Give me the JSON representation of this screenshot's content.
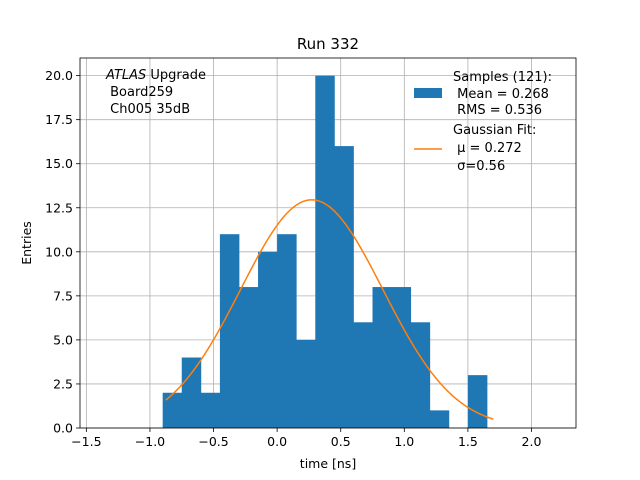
{
  "chart_data": {
    "type": "bar",
    "title": "Run 332",
    "xlabel": "time [ns]",
    "ylabel": "Entries",
    "xlim": [
      -1.55,
      2.35
    ],
    "ylim": [
      0,
      21
    ],
    "grid": true,
    "xticks": [
      -1.5,
      -1.0,
      -0.5,
      0.0,
      0.5,
      1.0,
      1.5,
      2.0
    ],
    "xtick_labels": [
      "−1.5",
      "−1.0",
      "−0.5",
      "0.0",
      "0.5",
      "1.0",
      "1.5",
      "2.0"
    ],
    "yticks": [
      0,
      2.5,
      5,
      7.5,
      10,
      12.5,
      15,
      17.5,
      20
    ],
    "ytick_labels": [
      "0.0",
      "2.5",
      "5.0",
      "7.5",
      "10.0",
      "12.5",
      "15.0",
      "17.5",
      "20.0"
    ],
    "histogram": {
      "name": "Samples (121):",
      "color": "#1f77b4",
      "bin_start": -0.9,
      "bin_width": 0.15,
      "counts": [
        2,
        4,
        2,
        11,
        8,
        10,
        11,
        5,
        20,
        16,
        6,
        8,
        8,
        6,
        1,
        0,
        3
      ]
    },
    "fit": {
      "name": "Gaussian Fit:",
      "color": "#ff7f0e",
      "mu": 0.272,
      "sigma": 0.56,
      "peak": 12.95,
      "x_range": [
        -0.875,
        1.7
      ]
    },
    "legend": {
      "position": "top-right",
      "samples_title": "Samples (121):",
      "samples_mean": " Mean = 0.268",
      "samples_rms": " RMS = 0.536",
      "fit_title": "Gaussian Fit:",
      "fit_mu": " μ = 0.272",
      "fit_sigma": " σ=0.56"
    },
    "annotation": {
      "atlas": "ATLAS",
      "upgrade": " Upgrade",
      "board": " Board259",
      "channel": " Ch005 35dB"
    }
  }
}
